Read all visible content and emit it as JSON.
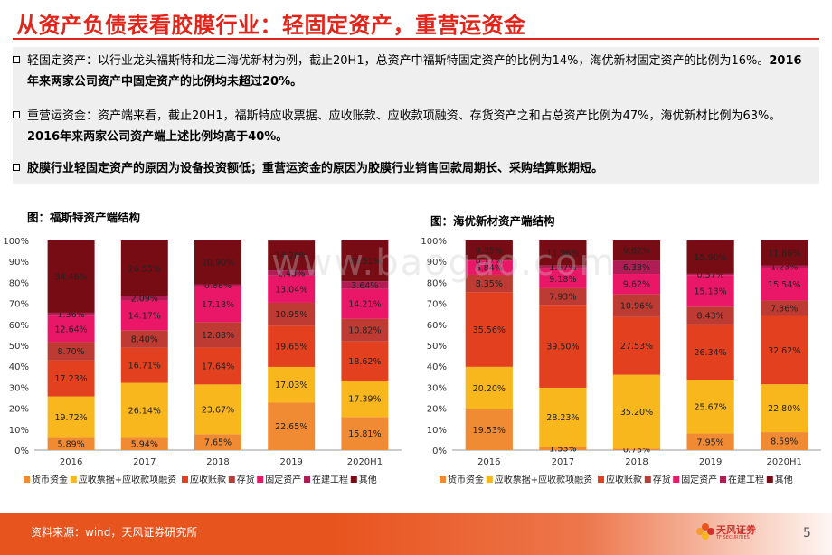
{
  "title": "从资产负债表看胶膜行业：轻固定资产，重营运资金",
  "paragraphs": [
    {
      "normal": "轻固定资产：以行业龙头福斯特和龙二海优新材为例，截止20H1，总资产中福斯特固定资产的比例为14%，海优新材固定资产的比例为16%。",
      "bold": "2016年来两家公司资产中固定资产的比例均未超过20%。"
    },
    {
      "normal": "重营运资金：资产端来看，截止20H1，福斯特应收票据、应收账款、应收款项融资、存货资产之和占总资产比例为47%，海优新材比例为63%。",
      "bold": "2016年来两家公司资产端上述比例均高于40%。"
    },
    {
      "normal": "",
      "bold": "胶膜行业轻固定资产的原因为设备投资额低；重营运资金的原因为胶膜行业销售回款周期长、采购结算账期短。"
    }
  ],
  "chart_data": [
    {
      "type": "bar",
      "stacked": true,
      "title": "图：福斯特资产端结构",
      "categories": [
        "2016",
        "2017",
        "2018",
        "2019",
        "2020H1"
      ],
      "ylim": [
        0,
        100
      ],
      "yticks": [
        "0%",
        "10%",
        "20%",
        "30%",
        "40%",
        "50%",
        "60%",
        "70%",
        "80%",
        "90%",
        "100%"
      ],
      "series": [
        {
          "name": "货币资金",
          "color": "#f08a33",
          "values": [
            5.89,
            5.94,
            7.65,
            22.65,
            15.81
          ]
        },
        {
          "name": "应收票据+应收款项融资",
          "color": "#f7b71d",
          "values": [
            19.72,
            26.14,
            23.67,
            17.03,
            17.39
          ]
        },
        {
          "name": "应收账款",
          "color": "#e2401f",
          "values": [
            17.23,
            16.71,
            17.64,
            19.65,
            18.62
          ]
        },
        {
          "name": "存货",
          "color": "#be3b33",
          "values": [
            8.7,
            8.4,
            12.08,
            10.95,
            10.82
          ]
        },
        {
          "name": "固定资产",
          "color": "#ea1668",
          "values": [
            12.64,
            14.17,
            17.18,
            13.04,
            14.21
          ]
        },
        {
          "name": "在建工程",
          "color": "#b01d54",
          "values": [
            1.36,
            2.09,
            0.88,
            2.43,
            3.64
          ]
        },
        {
          "name": "其他",
          "color": "#780c14",
          "values": [
            34.46,
            26.55,
            20.9,
            14.2,
            19.51
          ]
        }
      ],
      "labels": [
        [
          "5.89%",
          "19.72%",
          "17.23%",
          "8.70%",
          "12.64%",
          "1.36%",
          "34.46%"
        ],
        [
          "5.94%",
          "26.14%",
          "16.71%",
          "8.40%",
          "14.17%",
          "2.09%",
          "26.55%"
        ],
        [
          "7.65%",
          "23.67%",
          "17.64%",
          "12.08%",
          "17.18%",
          "0.88%",
          "20.90%"
        ],
        [
          "22.65%",
          "17.03%",
          "19.65%",
          "10.95%",
          "13.04%",
          "2.43%",
          "14.20%"
        ],
        [
          "15.81%",
          "17.39%",
          "18.62%",
          "10.82%",
          "14.21%",
          "3.64%",
          "19.51%"
        ]
      ],
      "legend": "bottom"
    },
    {
      "type": "bar",
      "stacked": true,
      "title": "图：海优新材资产端结构",
      "categories": [
        "2016",
        "2017",
        "2018",
        "2019",
        "2020H1"
      ],
      "ylim": [
        0,
        100
      ],
      "yticks": [
        "0%",
        "10%",
        "20%",
        "30%",
        "40%",
        "50%",
        "60%",
        "70%",
        "80%",
        "90%",
        "100%"
      ],
      "series": [
        {
          "name": "货币资金",
          "color": "#f08a33",
          "values": [
            19.53,
            1.53,
            0.73,
            7.95,
            8.59
          ]
        },
        {
          "name": "应收票据+应收款项融资",
          "color": "#f7b71d",
          "values": [
            20.2,
            28.23,
            35.2,
            25.67,
            22.8
          ]
        },
        {
          "name": "应收账款",
          "color": "#e2401f",
          "values": [
            35.56,
            39.5,
            27.53,
            26.34,
            32.62
          ]
        },
        {
          "name": "存货",
          "color": "#be3b33",
          "values": [
            8.35,
            7.93,
            10.96,
            8.43,
            7.36
          ]
        },
        {
          "name": "固定资产",
          "color": "#ea1668",
          "values": [
            6.84,
            9.18,
            9.62,
            15.13,
            15.54
          ]
        },
        {
          "name": "在建工程",
          "color": "#b01d54",
          "values": [
            0.17,
            1.67,
            6.33,
            0.57,
            1.23
          ]
        },
        {
          "name": "其他",
          "color": "#780c14",
          "values": [
            9.35,
            11.96,
            9.62,
            15.9,
            11.86
          ]
        }
      ],
      "labels": [
        [
          "19.53%",
          "20.20%",
          "35.56%",
          "8.35%",
          "6.84%",
          "0.17%",
          "9.35%"
        ],
        [
          "1.53%",
          "28.23%",
          "39.50%",
          "7.93%",
          "9.18%",
          "1.67%",
          "11.96%"
        ],
        [
          "0.73%",
          "35.20%",
          "27.53%",
          "10.96%",
          "9.62%",
          "6.33%",
          "9.62%"
        ],
        [
          "7.95%",
          "25.67%",
          "26.34%",
          "8.43%",
          "15.13%",
          "0.57%",
          "15.90%"
        ],
        [
          "8.59%",
          "22.80%",
          "32.62%",
          "7.36%",
          "15.54%",
          "1.23%",
          "11.86%"
        ]
      ],
      "legend": "bottom"
    }
  ],
  "footer": {
    "source": "资料来源：wind，天风证券研究所",
    "logo_text": "天风证券",
    "logo_sub": "TF SECURITIES",
    "page": "5"
  },
  "watermark": "www.baogao.com"
}
